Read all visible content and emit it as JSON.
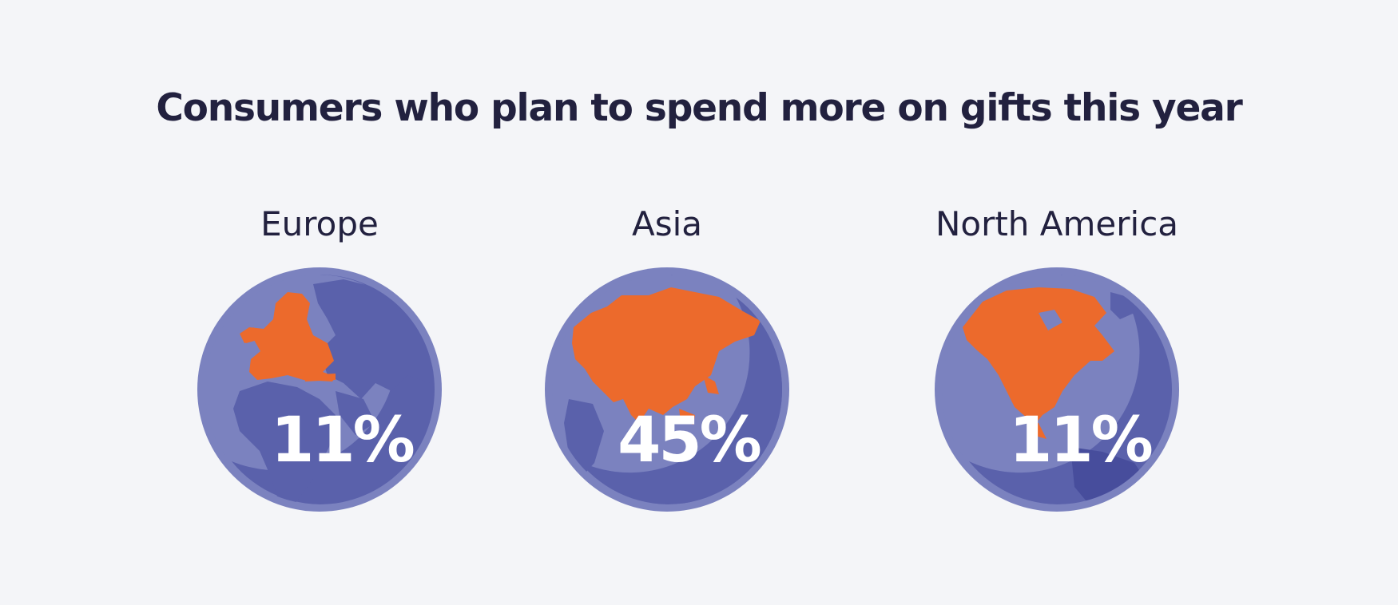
{
  "chart_data": {
    "type": "table",
    "title": "Consumers who plan to spend more on gifts this year",
    "categories": [
      "Europe",
      "Asia",
      "North America"
    ],
    "values": [
      11,
      45,
      11
    ],
    "value_labels": [
      "11%",
      "45%",
      "11%"
    ]
  },
  "colors": {
    "background": "#f4f5f8",
    "globe_light": "#7b82bf",
    "globe_dark": "#5a61ab",
    "globe_deep": "#474d9c",
    "highlight": "#ec6a2c",
    "text": "#22213f"
  }
}
